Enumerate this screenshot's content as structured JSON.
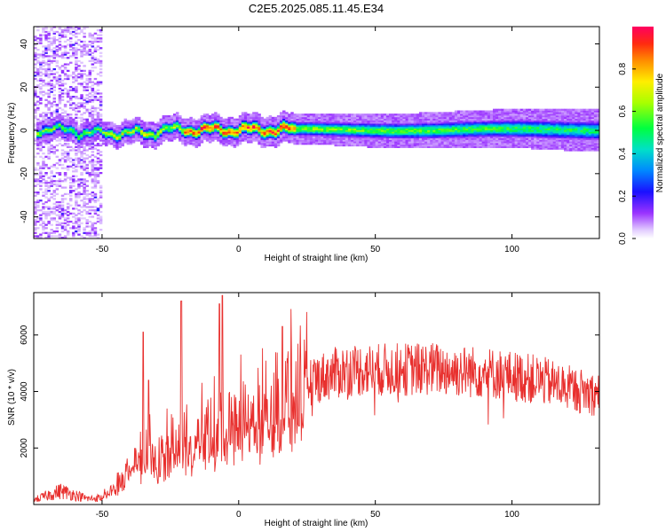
{
  "title": "C2E5.2025.085.11.45.E34",
  "chart_data": [
    {
      "type": "heatmap",
      "xlabel": "Height of straight line (km)",
      "ylabel": "Frequency (Hz)",
      "xlim": [
        -75,
        132
      ],
      "ylim": [
        -50,
        48
      ],
      "xticks": [
        -50,
        0,
        50,
        100
      ],
      "yticks": [
        -40,
        -20,
        0,
        20,
        40
      ],
      "colorbar": {
        "label": "Normalized spectral amplitude",
        "range": [
          0,
          1
        ],
        "ticks": [
          0.0,
          0.2,
          0.4,
          0.6,
          0.8
        ]
      },
      "features": {
        "noise_band_km": [
          -75,
          -50
        ],
        "signal_line_hz": 0,
        "strongest_segment_km": [
          -20,
          20
        ]
      }
    },
    {
      "type": "line",
      "xlabel": "Height of straight line (km)",
      "ylabel": "SNR (10 * v/v)",
      "xlim": [
        -75,
        132
      ],
      "ylim": [
        0,
        7500
      ],
      "xticks": [
        -50,
        0,
        50,
        100
      ],
      "yticks": [
        2000,
        4000,
        6000
      ],
      "series": [
        {
          "color": "#e8302e",
          "envelope_x": [
            -75,
            -65,
            -55,
            -50,
            -45,
            -40,
            -35,
            -30,
            -20,
            -10,
            0,
            10,
            20,
            30,
            40,
            50,
            60,
            70,
            80,
            90,
            100,
            110,
            120,
            132
          ],
          "envelope_y": [
            200,
            600,
            250,
            300,
            700,
            1600,
            2000,
            1900,
            2600,
            2900,
            3500,
            3900,
            4600,
            5000,
            5300,
            5300,
            5300,
            5350,
            5250,
            5200,
            5050,
            4900,
            4600,
            4300
          ],
          "peaks_x": [
            -35,
            -33,
            -21,
            -7,
            -6,
            16
          ],
          "peaks_y": [
            6100,
            4400,
            7200,
            7100,
            7400,
            6300
          ]
        }
      ]
    }
  ]
}
